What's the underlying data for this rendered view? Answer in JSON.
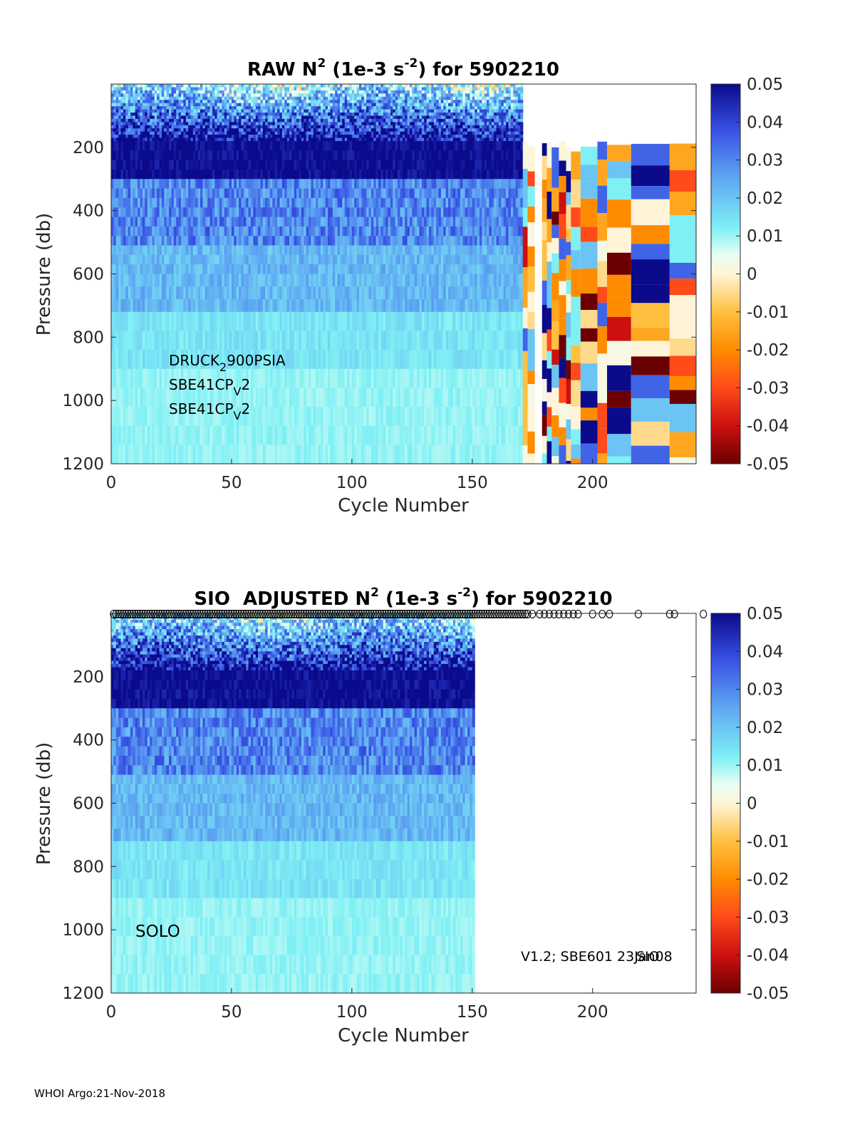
{
  "figure": {
    "footer": "WHOI Argo:21-Nov-2018"
  },
  "colorbar": {
    "ticks": [
      "0.05",
      "0.04",
      "0.03",
      "0.02",
      "0.01",
      "0",
      "-0.01",
      "-0.02",
      "-0.03",
      "-0.04",
      "-0.05"
    ],
    "stops": [
      "#6b0000",
      "#cc1010",
      "#ff4a1a",
      "#ff8c00",
      "#ffc040",
      "#fff4d8",
      "#e8fff4",
      "#7ff0f4",
      "#5fa8f2",
      "#3850e4",
      "#0a0a8a"
    ]
  },
  "chart_data": [
    {
      "type": "heatmap",
      "title_prefix": "RAW N",
      "title_sup1": "2",
      "title_mid": " (1e-3 s",
      "title_sup2": "-2",
      "title_suffix": ") for 5902210",
      "xlabel": "Cycle Number",
      "ylabel": "Pressure (db)",
      "xlim": [
        0,
        243
      ],
      "ylim": [
        0,
        1200
      ],
      "xticks": [
        0,
        50,
        100,
        150,
        200
      ],
      "yticks": [
        200,
        400,
        600,
        800,
        1000,
        1200
      ],
      "clim": [
        -0.05,
        0.05
      ],
      "data_extent_cycles": 171,
      "sparse_extent_cycles": 243,
      "annotations": [
        {
          "base": "DRUCK",
          "sub": "2",
          "rest": "900PSIA"
        },
        {
          "base": "SBE41CP",
          "sub": "V",
          "rest": "2"
        },
        {
          "base": "SBE41CP",
          "sub": "V",
          "rest": "2"
        }
      ]
    },
    {
      "type": "heatmap",
      "title_prefix": "SIO  ADJUSTED N",
      "title_sup1": "2",
      "title_mid": " (1e-3 s",
      "title_sup2": "-2",
      "title_suffix": ") for 5902210",
      "xlabel": "Cycle Number",
      "ylabel": "Pressure (db)",
      "xlim": [
        0,
        243
      ],
      "ylim": [
        0,
        1200
      ],
      "xticks": [
        0,
        50,
        100,
        150,
        200
      ],
      "yticks": [
        200,
        400,
        600,
        800,
        1000,
        1200
      ],
      "clim": [
        -0.05,
        0.05
      ],
      "data_extent_cycles": 151,
      "profile_markers": [
        1,
        2,
        3,
        4,
        5,
        6,
        7,
        8,
        9,
        10,
        11,
        12,
        13,
        14,
        15,
        16,
        17,
        18,
        19,
        20,
        21,
        22,
        23,
        24,
        25,
        26,
        27,
        28,
        29,
        30,
        31,
        32,
        33,
        34,
        35,
        36,
        37,
        38,
        39,
        40,
        41,
        42,
        43,
        44,
        45,
        46,
        47,
        48,
        49,
        50,
        51,
        52,
        53,
        54,
        55,
        56,
        57,
        58,
        59,
        60,
        61,
        62,
        63,
        64,
        65,
        66,
        67,
        68,
        69,
        70,
        71,
        72,
        73,
        74,
        75,
        76,
        77,
        78,
        79,
        80,
        81,
        82,
        83,
        84,
        85,
        86,
        87,
        88,
        89,
        90,
        91,
        92,
        93,
        94,
        95,
        96,
        97,
        98,
        99,
        100,
        101,
        102,
        103,
        104,
        105,
        106,
        107,
        108,
        109,
        110,
        111,
        112,
        113,
        114,
        115,
        116,
        117,
        118,
        119,
        120,
        121,
        122,
        123,
        124,
        125,
        126,
        127,
        128,
        129,
        130,
        131,
        132,
        133,
        134,
        135,
        136,
        137,
        138,
        139,
        140,
        141,
        142,
        143,
        144,
        145,
        146,
        147,
        148,
        149,
        150,
        151,
        152,
        153,
        154,
        155,
        156,
        157,
        158,
        159,
        160,
        161,
        162,
        163,
        164,
        165,
        166,
        167,
        168,
        169,
        170,
        171,
        172,
        173,
        175,
        178,
        180,
        182,
        184,
        186,
        188,
        190,
        192,
        194,
        200,
        204,
        207,
        219,
        232,
        234,
        246
      ],
      "annotations": [
        {
          "text": "SOLO"
        },
        {
          "text": "V1.2; SBE601 23Jan08"
        },
        {
          "text": "SIO"
        }
      ]
    }
  ]
}
